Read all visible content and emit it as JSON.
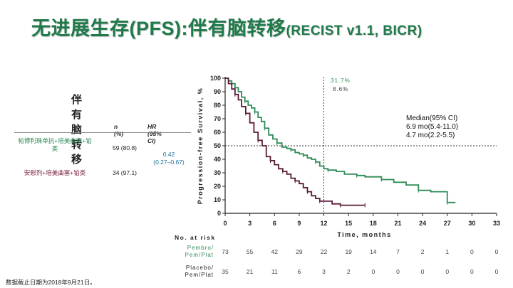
{
  "title": {
    "main": "无进展生存(PFS):伴有脑转移",
    "sub": "(RECIST v1.1, BICR)"
  },
  "left_panel": {
    "heading": "伴有脑转移",
    "col_n": "n (%)",
    "col_hr": "HR (95% CI)",
    "arms": [
      {
        "name": "帕博利珠单抗+培美曲塞+铂类",
        "n": "59 (80.8)",
        "color": "#2e8b57"
      },
      {
        "name": "安慰剂+培美曲塞+铂类",
        "n": "34 (97.1)",
        "color": "#7a1f3d"
      }
    ],
    "hr_value": "0.42",
    "hr_ci": "(0.27–0.67)"
  },
  "footnote": "数据截止日期为2018年9月21日。",
  "chart_data": {
    "type": "line",
    "step": true,
    "ylabel": "Progression-free Survival, %",
    "xlabel": "Time, months",
    "xlim": [
      0,
      33
    ],
    "ylim": [
      0,
      100
    ],
    "xticks": [
      0,
      3,
      6,
      9,
      12,
      15,
      18,
      21,
      24,
      27,
      30,
      33
    ],
    "yticks": [
      0,
      10,
      20,
      30,
      40,
      50,
      60,
      70,
      80,
      90,
      100
    ],
    "reference_lines": {
      "y": 50,
      "x": 12
    },
    "annotations": {
      "pembro_12mo": "31.7%",
      "placebo_12mo": "8.6%"
    },
    "median_box": {
      "header": "Median(95% CI)",
      "lines": [
        "6.9 mo(5.4-11.0)",
        "4.7 mo(2.2-5.5)"
      ]
    },
    "series": [
      {
        "color": "#2e8b57",
        "points": [
          [
            0,
            100
          ],
          [
            0.4,
            98
          ],
          [
            0.8,
            96
          ],
          [
            1.2,
            93
          ],
          [
            1.6,
            90
          ],
          [
            2,
            86
          ],
          [
            2.4,
            83
          ],
          [
            2.8,
            80
          ],
          [
            3.2,
            78
          ],
          [
            3.6,
            75
          ],
          [
            4,
            71
          ],
          [
            4.4,
            68
          ],
          [
            4.8,
            63
          ],
          [
            5.3,
            58
          ],
          [
            5.8,
            55
          ],
          [
            6.3,
            52
          ],
          [
            6.9,
            49
          ],
          [
            7.5,
            48
          ],
          [
            8,
            47
          ],
          [
            8.5,
            45
          ],
          [
            9,
            44
          ],
          [
            9.5,
            43
          ],
          [
            10,
            41
          ],
          [
            10.5,
            40
          ],
          [
            11,
            38
          ],
          [
            11.5,
            35
          ],
          [
            12,
            33
          ],
          [
            12.5,
            32
          ],
          [
            13.5,
            31
          ],
          [
            14.5,
            29
          ],
          [
            16,
            28
          ],
          [
            17,
            27
          ],
          [
            18,
            27
          ],
          [
            19,
            25
          ],
          [
            20.5,
            23
          ],
          [
            22,
            21
          ],
          [
            23.5,
            17
          ],
          [
            25,
            16
          ],
          [
            26.5,
            16
          ],
          [
            27,
            8
          ],
          [
            28,
            8
          ]
        ]
      },
      {
        "color": "#5a1a36",
        "points": [
          [
            0,
            100
          ],
          [
            0.4,
            96
          ],
          [
            0.8,
            92
          ],
          [
            1.2,
            88
          ],
          [
            1.6,
            84
          ],
          [
            2,
            79
          ],
          [
            2.5,
            74
          ],
          [
            3,
            67
          ],
          [
            3.5,
            60
          ],
          [
            4,
            54
          ],
          [
            4.5,
            50
          ],
          [
            5,
            42
          ],
          [
            5.5,
            39
          ],
          [
            6,
            36
          ],
          [
            6.5,
            33
          ],
          [
            7,
            31
          ],
          [
            7.5,
            29
          ],
          [
            8,
            26
          ],
          [
            8.5,
            24
          ],
          [
            9,
            22
          ],
          [
            9.5,
            19
          ],
          [
            10,
            16
          ],
          [
            10.5,
            13
          ],
          [
            11,
            11
          ],
          [
            11.5,
            9
          ],
          [
            12,
            9
          ],
          [
            13,
            7
          ],
          [
            14,
            6
          ],
          [
            15,
            6
          ],
          [
            16,
            6
          ],
          [
            17,
            6
          ]
        ]
      }
    ],
    "risk_table": {
      "header": "No. at risk",
      "rows": [
        {
          "label": [
            "Pembro/",
            "Pem/Plat"
          ],
          "color": "#2e8b57",
          "values": [
            "73",
            "55",
            "42",
            "29",
            "22",
            "19",
            "14",
            "7",
            "2",
            "1",
            "0",
            "0"
          ]
        },
        {
          "label": [
            "Placebo/",
            "Pem/Plat"
          ],
          "color": "#222222",
          "values": [
            "35",
            "21",
            "11",
            "6",
            "3",
            "2",
            "0",
            "0",
            "0",
            "0",
            "0",
            "0"
          ]
        }
      ]
    }
  }
}
